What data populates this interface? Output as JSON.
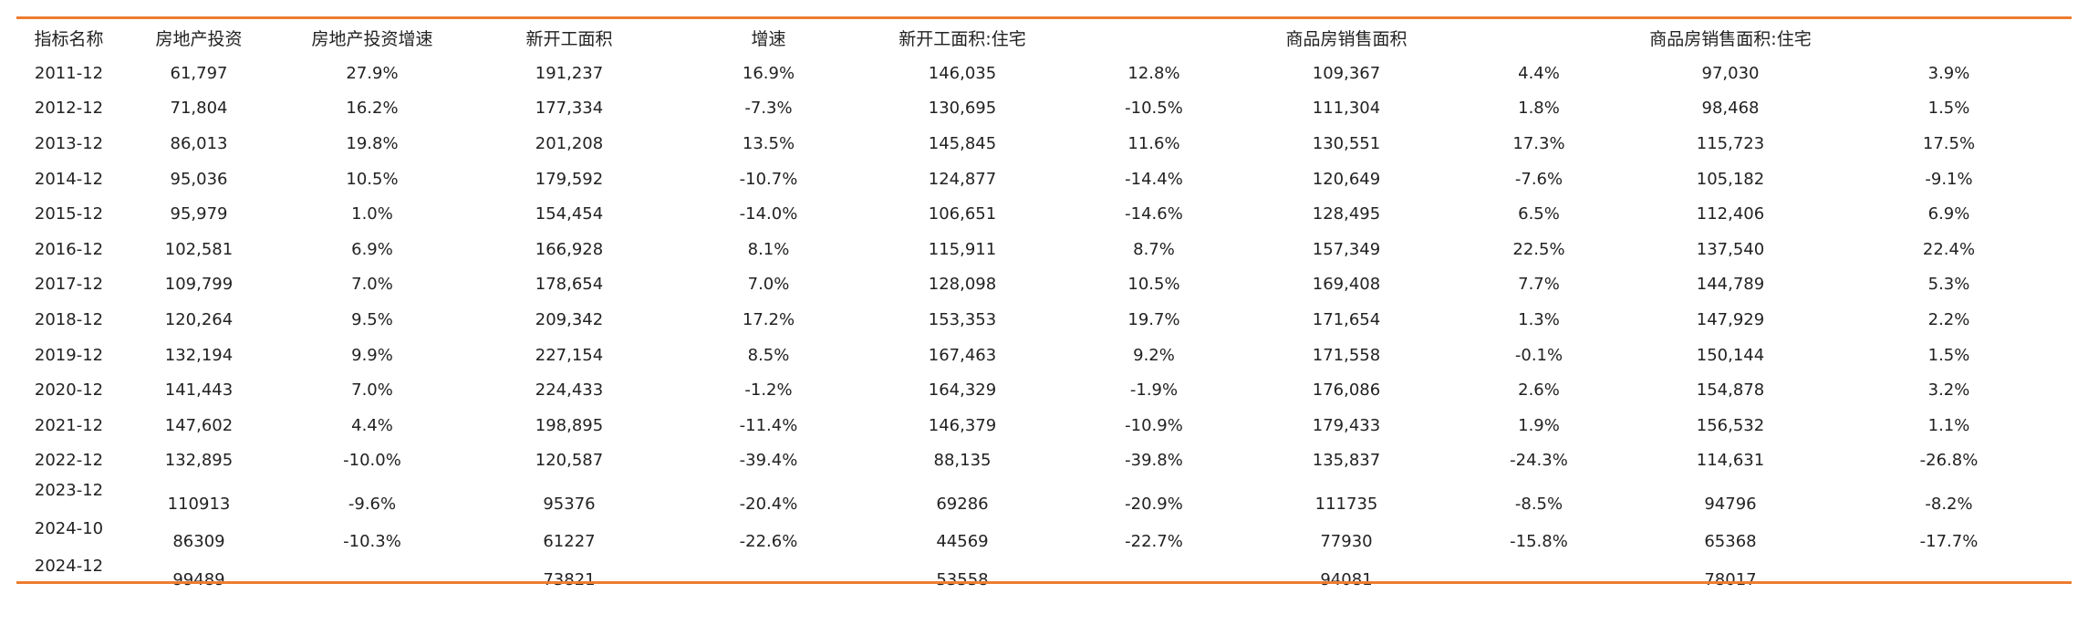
{
  "headers": [
    "指标名称",
    "房地产投资",
    "房地产投资增速",
    "新开工面积",
    "增速",
    "新开工面积:住宅",
    "",
    "商品房销售面积",
    "",
    "商品房销售面积:住宅",
    ""
  ],
  "rows": [
    [
      "2011-12",
      "61,797",
      "27.9%",
      "191,237",
      "16.9%",
      "146,035",
      "12.8%",
      "109,367",
      "4.4%",
      "97,030",
      "3.9%"
    ],
    [
      "2012-12",
      "71,804",
      "16.2%",
      "177,334",
      "-7.3%",
      "130,695",
      "-10.5%",
      "111,304",
      "1.8%",
      "98,468",
      "1.5%"
    ],
    [
      "2013-12",
      "86,013",
      "19.8%",
      "201,208",
      "13.5%",
      "145,845",
      "11.6%",
      "130,551",
      "17.3%",
      "115,723",
      "17.5%"
    ],
    [
      "2014-12",
      "95,036",
      "10.5%",
      "179,592",
      "-10.7%",
      "124,877",
      "-14.4%",
      "120,649",
      "-7.6%",
      "105,182",
      "-9.1%"
    ],
    [
      "2015-12",
      "95,979",
      "1.0%",
      "154,454",
      "-14.0%",
      "106,651",
      "-14.6%",
      "128,495",
      "6.5%",
      "112,406",
      "6.9%"
    ],
    [
      "2016-12",
      "102,581",
      "6.9%",
      "166,928",
      "8.1%",
      "115,911",
      "8.7%",
      "157,349",
      "22.5%",
      "137,540",
      "22.4%"
    ],
    [
      "2017-12",
      "109,799",
      "7.0%",
      "178,654",
      "7.0%",
      "128,098",
      "10.5%",
      "169,408",
      "7.7%",
      "144,789",
      "5.3%"
    ],
    [
      "2018-12",
      "120,264",
      "9.5%",
      "209,342",
      "17.2%",
      "153,353",
      "19.7%",
      "171,654",
      "1.3%",
      "147,929",
      "2.2%"
    ],
    [
      "2019-12",
      "132,194",
      "9.9%",
      "227,154",
      "8.5%",
      "167,463",
      "9.2%",
      "171,558",
      "-0.1%",
      "150,144",
      "1.5%"
    ],
    [
      "2020-12",
      "141,443",
      "7.0%",
      "224,433",
      "-1.2%",
      "164,329",
      "-1.9%",
      "176,086",
      "2.6%",
      "154,878",
      "3.2%"
    ],
    [
      "2021-12",
      "147,602",
      "4.4%",
      "198,895",
      "-11.4%",
      "146,379",
      "-10.9%",
      "179,433",
      "1.9%",
      "156,532",
      "1.1%"
    ],
    [
      "2022-12",
      "132,895",
      "-10.0%",
      "120,587",
      "-39.4%",
      "88,135",
      "-39.8%",
      "135,837",
      "-24.3%",
      "114,631",
      "-26.8%"
    ],
    [
      "2023-12",
      "110913",
      "-9.6%",
      "95376",
      "-20.4%",
      "69286",
      "-20.9%",
      "111735",
      "-8.5%",
      "94796",
      "-8.2%"
    ],
    [
      "2024-10",
      "86309",
      "-10.3%",
      "61227",
      "-22.6%",
      "44569",
      "-22.7%",
      "77930",
      "-15.8%",
      "65368",
      "-17.7%"
    ],
    [
      "2024-12",
      "99489",
      "",
      "73821",
      "",
      "53558",
      "",
      "94081",
      "",
      "78017",
      ""
    ]
  ],
  "colors": {
    "rule": "#ED7D31",
    "text": "#222222"
  }
}
